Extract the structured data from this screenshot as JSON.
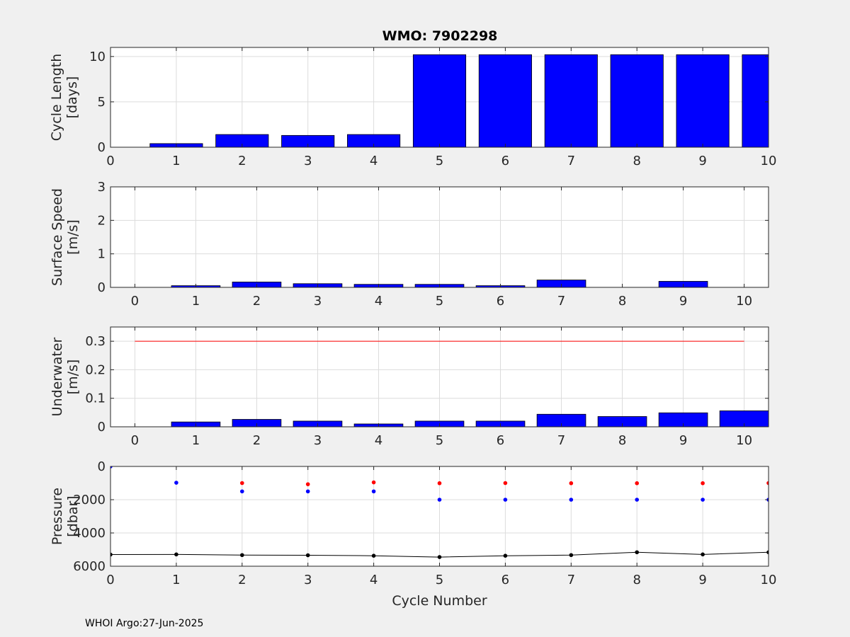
{
  "title": "WMO: 7902298",
  "footer": "WHOI Argo:27-Jun-2025",
  "colors": {
    "bars": "#0000ff",
    "reference_line": "#ff0000",
    "series_red": "#ff0000",
    "series_blue": "#0000ff",
    "series_black": "#000000",
    "grid": "#dcdcdc",
    "axes_background": "#ffffff",
    "figure_background": "#f0f0f0"
  },
  "chart_data": [
    {
      "type": "bar",
      "title": "WMO: 7902298",
      "ylabel": [
        "Cycle Length",
        "[days]"
      ],
      "xlabel": "",
      "xlim": [
        0,
        10
      ],
      "ylim": [
        0,
        11
      ],
      "xticks": [
        0,
        1,
        2,
        3,
        4,
        5,
        6,
        7,
        8,
        9,
        10
      ],
      "yticks": [
        0,
        5,
        10
      ],
      "grid": true,
      "x": [
        1,
        2,
        3,
        4,
        5,
        6,
        7,
        8,
        9,
        10
      ],
      "values": [
        0.4,
        1.4,
        1.3,
        1.4,
        10.2,
        10.2,
        10.2,
        10.2,
        10.2,
        10.2
      ]
    },
    {
      "type": "bar",
      "ylabel": [
        "Surface Speed",
        "[m/s]"
      ],
      "xlabel": "",
      "xlim": [
        -0.4,
        10.4
      ],
      "ylim": [
        0,
        3
      ],
      "xticks": [
        0,
        1,
        2,
        3,
        4,
        5,
        6,
        7,
        8,
        9,
        10
      ],
      "yticks": [
        0,
        1,
        2,
        3
      ],
      "grid": true,
      "x": [
        1,
        2,
        3,
        4,
        5,
        6,
        7,
        8,
        9
      ],
      "values": [
        0.05,
        0.16,
        0.11,
        0.09,
        0.09,
        0.05,
        0.22,
        0,
        0.18
      ]
    },
    {
      "type": "bar",
      "ylabel": [
        "Underwater",
        "[m/s]"
      ],
      "xlabel": "",
      "xlim": [
        -0.4,
        10.4
      ],
      "ylim": [
        0,
        0.35
      ],
      "xticks": [
        0,
        1,
        2,
        3,
        4,
        5,
        6,
        7,
        8,
        9,
        10
      ],
      "yticks": [
        0,
        0.1,
        0.2,
        0.3
      ],
      "grid": true,
      "x": [
        1,
        2,
        3,
        4,
        5,
        6,
        7,
        8,
        9,
        10
      ],
      "values": [
        0.017,
        0.026,
        0.02,
        0.01,
        0.02,
        0.02,
        0.044,
        0.036,
        0.049,
        0.056
      ],
      "reference_line": {
        "y": 0.3,
        "x": [
          0,
          10
        ]
      }
    },
    {
      "type": "scatter",
      "ylabel": [
        "Pressure",
        "[dbar]"
      ],
      "xlabel": "Cycle Number",
      "xlim": [
        0,
        10
      ],
      "ylim": [
        6000,
        0
      ],
      "y_reversed": true,
      "xticks": [
        0,
        1,
        2,
        3,
        4,
        5,
        6,
        7,
        8,
        9,
        10
      ],
      "yticks": [
        0,
        2000,
        4000,
        6000
      ],
      "grid": true,
      "series": [
        {
          "color": "red",
          "x": [
            2,
            3,
            4,
            5,
            6,
            7,
            8,
            9,
            10
          ],
          "values": [
            1000,
            1070,
            960,
            1010,
            1000,
            1010,
            1010,
            1010,
            1000
          ]
        },
        {
          "color": "blue",
          "x": [
            0,
            1,
            2,
            3,
            4,
            5,
            6,
            7,
            8,
            9,
            10
          ],
          "values": [
            0,
            980,
            1500,
            1500,
            1500,
            2000,
            2000,
            2000,
            2000,
            2000,
            2000
          ]
        },
        {
          "color": "black",
          "line": true,
          "x": [
            0,
            1,
            2,
            3,
            4,
            5,
            6,
            7,
            8,
            9,
            10
          ],
          "values": [
            5300,
            5290,
            5330,
            5340,
            5370,
            5450,
            5370,
            5330,
            5160,
            5290,
            5160
          ]
        }
      ]
    }
  ]
}
